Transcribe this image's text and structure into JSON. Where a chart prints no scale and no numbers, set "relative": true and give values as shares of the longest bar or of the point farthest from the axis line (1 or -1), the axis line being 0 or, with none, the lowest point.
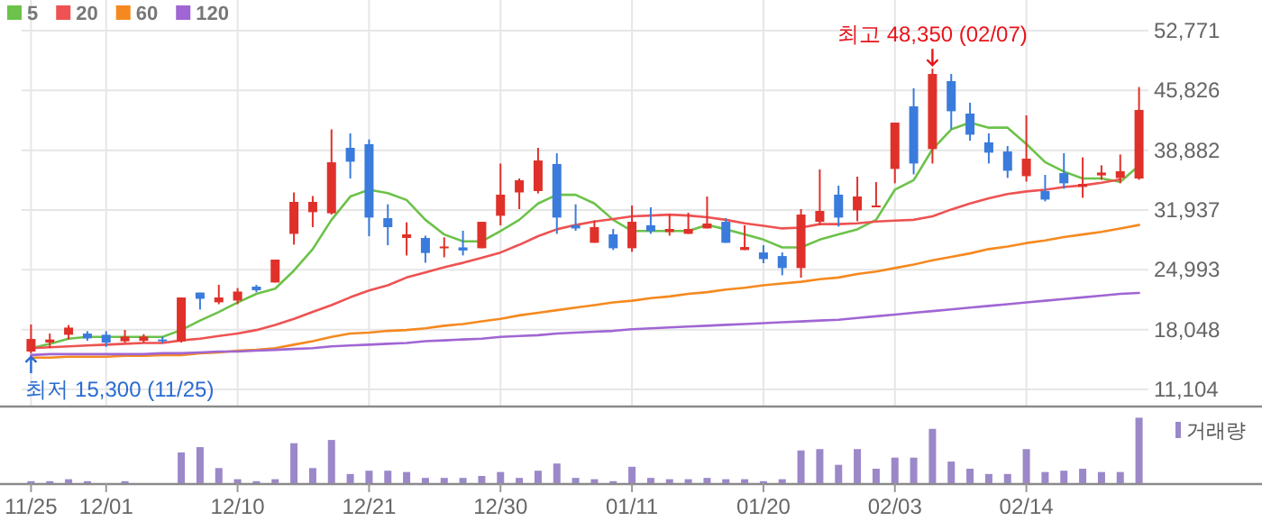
{
  "chart_data": [
    {
      "type": "candlestick",
      "categories": [
        "11/25",
        null,
        null,
        null,
        "12/01",
        null,
        null,
        null,
        null,
        null,
        null,
        "12/10",
        null,
        null,
        null,
        null,
        null,
        null,
        "12/21",
        null,
        null,
        null,
        null,
        null,
        null,
        "12/30",
        null,
        null,
        null,
        null,
        null,
        null,
        "01/11",
        null,
        null,
        null,
        null,
        null,
        null,
        "01/20",
        null,
        null,
        null,
        null,
        null,
        null,
        "02/03",
        null,
        null,
        null,
        null,
        null,
        null,
        "02/14",
        null,
        null,
        null,
        null,
        null,
        null
      ],
      "ohlc": [
        [
          15500,
          18640,
          15300,
          16960
        ],
        [
          16550,
          17590,
          15920,
          16900
        ],
        [
          17450,
          18580,
          16900,
          18280
        ],
        [
          17590,
          17860,
          16750,
          17030
        ],
        [
          17450,
          17860,
          16050,
          16540
        ],
        [
          16690,
          18010,
          16540,
          17240
        ],
        [
          16750,
          17520,
          16540,
          17240
        ],
        [
          16900,
          17240,
          16470,
          16690
        ],
        [
          16690,
          21780,
          16540,
          21780
        ],
        [
          22350,
          22350,
          20380,
          21630
        ],
        [
          21220,
          23250,
          21000,
          21780
        ],
        [
          21420,
          22870,
          21000,
          22470
        ],
        [
          23040,
          23250,
          22390,
          22620
        ],
        [
          23520,
          26180,
          23520,
          26180
        ],
        [
          29170,
          33980,
          27920,
          32880
        ],
        [
          31690,
          33560,
          29950,
          32880
        ],
        [
          31560,
          41310,
          31410,
          37480
        ],
        [
          39160,
          40840,
          35600,
          37550
        ],
        [
          39580,
          40140,
          28900,
          31060
        ],
        [
          30990,
          32600,
          27850,
          29950
        ],
        [
          28690,
          30510,
          26660,
          29110
        ],
        [
          28690,
          28960,
          25820,
          26950
        ],
        [
          27500,
          28760,
          26450,
          27700
        ],
        [
          27600,
          29530,
          26660,
          27240
        ],
        [
          27500,
          30570,
          27500,
          30570
        ],
        [
          31270,
          37340,
          30160,
          33720
        ],
        [
          33980,
          35600,
          32040,
          35390
        ],
        [
          34140,
          39160,
          33870,
          37690
        ],
        [
          37280,
          38530,
          29170,
          31060
        ],
        [
          30160,
          32600,
          29530,
          29800
        ],
        [
          28130,
          30720,
          28130,
          29950
        ],
        [
          29110,
          29740,
          27290,
          27500
        ],
        [
          27500,
          32460,
          27080,
          30570
        ],
        [
          30160,
          32250,
          29170,
          29470
        ],
        [
          29380,
          31410,
          28960,
          29740
        ],
        [
          29170,
          31620,
          29170,
          29740
        ],
        [
          29800,
          33510,
          29800,
          30370
        ],
        [
          30570,
          30990,
          28130,
          28130
        ],
        [
          27290,
          30160,
          27290,
          27640
        ],
        [
          27010,
          27850,
          25760,
          26240
        ],
        [
          26590,
          27010,
          24360,
          25200
        ],
        [
          25200,
          32040,
          24080,
          31410
        ],
        [
          30570,
          36650,
          30160,
          31830
        ],
        [
          33720,
          34770,
          30010,
          31060
        ],
        [
          31900,
          35810,
          30640,
          33510
        ],
        [
          32250,
          35180,
          32250,
          32460
        ],
        [
          36710,
          42090,
          35040,
          42090
        ],
        [
          43980,
          46070,
          36080,
          37340
        ],
        [
          39020,
          48350,
          37340,
          47740
        ],
        [
          46910,
          47750,
          41320,
          43410
        ],
        [
          43140,
          44400,
          39990,
          40690
        ],
        [
          39790,
          40840,
          37340,
          38600
        ],
        [
          38740,
          39370,
          35670,
          36500
        ],
        [
          35870,
          42930,
          35240,
          37900
        ],
        [
          34140,
          36020,
          32940,
          33150
        ],
        [
          36230,
          38530,
          34410,
          35040
        ],
        [
          34620,
          38050,
          33360,
          34970
        ],
        [
          35960,
          37130,
          35450,
          36290
        ],
        [
          35660,
          38390,
          35040,
          36440
        ],
        [
          35600,
          46220,
          35450,
          43560
        ]
      ],
      "series": [
        {
          "name": "5",
          "type": "line",
          "color": "#6cc24a",
          "values": [
            15900,
            16400,
            17000,
            17200,
            17200,
            17200,
            17200,
            17200,
            18000,
            19100,
            20100,
            21200,
            22200,
            22800,
            24900,
            27400,
            30800,
            33500,
            34300,
            33900,
            33100,
            30800,
            29100,
            28300,
            28300,
            29500,
            30800,
            32700,
            33700,
            33700,
            32700,
            30800,
            29500,
            29500,
            29500,
            29500,
            30200,
            29700,
            29100,
            28500,
            27600,
            27600,
            28500,
            29100,
            29700,
            30800,
            34300,
            35400,
            39000,
            41300,
            42100,
            41500,
            41500,
            39600,
            37500,
            36400,
            35600,
            35600,
            35200,
            37100
          ]
        },
        {
          "name": "20",
          "type": "line",
          "color": "#ee5252",
          "values": [
            15900,
            16000,
            16100,
            16200,
            16300,
            16400,
            16500,
            16500,
            16800,
            17000,
            17300,
            17600,
            18000,
            18600,
            19300,
            20100,
            20900,
            21800,
            22600,
            23200,
            24100,
            24700,
            25300,
            25800,
            26400,
            27000,
            27900,
            28900,
            29700,
            30200,
            30600,
            30900,
            31200,
            31300,
            31400,
            31300,
            31100,
            30800,
            30400,
            30100,
            29800,
            29900,
            30300,
            30300,
            30400,
            30600,
            30700,
            30800,
            31200,
            32000,
            32700,
            33300,
            33800,
            34100,
            34300,
            34600,
            34800,
            35100,
            35500,
            null
          ]
        },
        {
          "name": "60",
          "type": "line",
          "color": "#f5891f",
          "values": [
            14800,
            14800,
            14900,
            14900,
            14900,
            15000,
            15000,
            15100,
            15100,
            15300,
            15400,
            15600,
            15700,
            15900,
            16300,
            16700,
            17200,
            17600,
            17700,
            17900,
            18000,
            18200,
            18500,
            18700,
            19000,
            19300,
            19700,
            20000,
            20300,
            20600,
            20900,
            21200,
            21400,
            21700,
            21900,
            22200,
            22400,
            22700,
            22900,
            23200,
            23400,
            23600,
            23900,
            24100,
            24500,
            24800,
            25200,
            25600,
            26100,
            26500,
            26900,
            27400,
            27700,
            28100,
            28400,
            28800,
            29100,
            29400,
            29800,
            30200
          ]
        },
        {
          "name": "120",
          "type": "line",
          "color": "#a066d3",
          "values": [
            15100,
            15200,
            15200,
            15200,
            15200,
            15200,
            15200,
            15300,
            15300,
            15400,
            15500,
            15500,
            15600,
            15700,
            15800,
            15900,
            16100,
            16200,
            16300,
            16400,
            16500,
            16700,
            16800,
            16900,
            17000,
            17200,
            17300,
            17400,
            17600,
            17700,
            17800,
            17900,
            18100,
            18200,
            18300,
            18400,
            18500,
            18600,
            18700,
            18800,
            18900,
            19000,
            19100,
            19200,
            19400,
            19600,
            19800,
            20000,
            20200,
            20400,
            20600,
            20800,
            21000,
            21200,
            21400,
            21600,
            21800,
            22000,
            22200,
            22300
          ]
        }
      ],
      "ylim": [
        9220,
        52771
      ],
      "yticks": [
        {
          "value": 11104,
          "label": "11,104"
        },
        {
          "value": 18048,
          "label": "18,048"
        },
        {
          "value": 24993,
          "label": "24,993"
        },
        {
          "value": 31937,
          "label": "31,937"
        },
        {
          "value": 38882,
          "label": "38,882"
        },
        {
          "value": 45826,
          "label": "45,826"
        },
        {
          "value": 52771,
          "label": "52,771"
        }
      ],
      "grid": true,
      "legend": "top left",
      "tick_labels": "y",
      "annotations": [
        {
          "text": "최고 48,350 (02/07)",
          "y": 48350
        },
        {
          "text": "최저 15,300 (11/25)",
          "x": "11/25",
          "y": 15300
        }
      ]
    },
    {
      "type": "bar",
      "relative": true,
      "categories": [
        "11/25",
        null,
        null,
        null,
        "12/01",
        null,
        null,
        null,
        null,
        null,
        null,
        "12/10",
        null,
        null,
        null,
        null,
        null,
        null,
        "12/21",
        null,
        null,
        null,
        null,
        null,
        null,
        "12/30",
        null,
        null,
        null,
        null,
        null,
        null,
        "01/11",
        null,
        null,
        null,
        null,
        null,
        null,
        "01/20",
        null,
        null,
        null,
        null,
        null,
        null,
        "02/03",
        null,
        null,
        null,
        null,
        null,
        null,
        "02/14",
        null,
        null,
        null,
        null,
        null,
        null
      ],
      "series": [
        {
          "name": "거래량",
          "color": "#9b88c8",
          "values": [
            0.03,
            0.03,
            0.06,
            0.03,
            0,
            0.03,
            0,
            0,
            0.47,
            0.55,
            0.23,
            0.06,
            0.03,
            0.06,
            0.61,
            0.23,
            0.66,
            0.14,
            0.19,
            0.19,
            0.17,
            0.08,
            0.08,
            0.08,
            0.11,
            0.17,
            0.08,
            0.19,
            0.3,
            0.08,
            0.06,
            0.03,
            0.25,
            0.08,
            0.06,
            0.06,
            0.08,
            0.06,
            0.06,
            0.03,
            0.06,
            0.5,
            0.52,
            0.28,
            0.52,
            0.22,
            0.39,
            0.39,
            0.83,
            0.33,
            0.22,
            0.14,
            0.14,
            0.52,
            0.17,
            0.19,
            0.22,
            0.17,
            0.17,
            1
          ]
        }
      ],
      "legend": "top right",
      "tick_labels": "x"
    }
  ]
}
